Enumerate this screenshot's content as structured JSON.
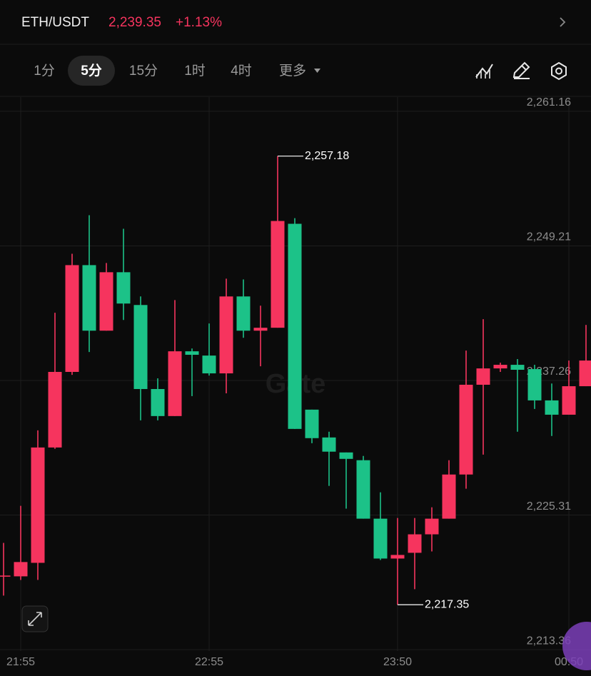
{
  "header": {
    "pair": "ETH/USDT",
    "price": "2,239.35",
    "change": "+1.13%"
  },
  "toolbar": {
    "intervals": [
      "1分",
      "5分",
      "15分",
      "1时",
      "4时",
      "更多"
    ],
    "selected": 1
  },
  "chart_data": {
    "type": "candlestick",
    "watermark": "Gate",
    "categories": [
      null,
      "21:55",
      null,
      null,
      null,
      null,
      null,
      null,
      null,
      null,
      null,
      null,
      "22:55",
      null,
      null,
      null,
      null,
      null,
      null,
      null,
      null,
      null,
      null,
      "23:50",
      null,
      null,
      null,
      null,
      null,
      null,
      null,
      null,
      null,
      "00:50",
      null
    ],
    "open": [
      2219.84,
      2219.87,
      2221.07,
      2231.31,
      2238.02,
      2247.5,
      2241.68,
      2246.87,
      2243.96,
      2236.5,
      2234.1,
      2239.85,
      2239.47,
      2237.89,
      2244.72,
      2241.68,
      2241.94,
      2251.17,
      2234.67,
      2232.2,
      2230.87,
      2230.18,
      2224.99,
      2221.45,
      2221.96,
      2223.6,
      2224.99,
      2228.91,
      2236.88,
      2238.33,
      2238.65,
      2238.27,
      2235.49,
      2234.22,
      2236.75
    ],
    "high": [
      2222.84,
      2226.13,
      2232.83,
      2243.27,
      2248.51,
      2251.93,
      2247.69,
      2250.73,
      2244.72,
      2237.45,
      2244.4,
      2240.1,
      2242.32,
      2246.3,
      2246.23,
      2243.9,
      2257.18,
      2251.67,
      2234.67,
      2232.71,
      2230.87,
      2230.56,
      2227.33,
      2225.05,
      2225.05,
      2226.0,
      2230.18,
      2239.91,
      2242.7,
      2238.84,
      2239.16,
      2238.65,
      2236.99,
      2239.03,
      2242.19
    ],
    "low": [
      2218.16,
      2219.55,
      2219.55,
      2231.19,
      2237.76,
      2239.79,
      2241.68,
      2242.63,
      2233.72,
      2233.72,
      2234.1,
      2235.87,
      2237.7,
      2236.12,
      2241.05,
      2238.52,
      2241.94,
      2232.96,
      2231.69,
      2227.9,
      2225.88,
      2224.99,
      2221.32,
      2217.35,
      2218.73,
      2222.08,
      2224.99,
      2227.65,
      2230.68,
      2238.02,
      2232.71,
      2234.73,
      2232.33,
      2234.22,
      2236.75
    ],
    "close": [
      2219.94,
      2221.14,
      2231.31,
      2238.02,
      2247.5,
      2241.68,
      2246.87,
      2244.09,
      2236.5,
      2234.1,
      2239.85,
      2239.54,
      2237.89,
      2244.72,
      2241.68,
      2241.94,
      2251.42,
      2232.96,
      2232.14,
      2230.94,
      2230.3,
      2224.99,
      2221.45,
      2221.77,
      2223.6,
      2224.99,
      2228.91,
      2236.88,
      2238.33,
      2238.65,
      2238.21,
      2235.49,
      2234.22,
      2236.75,
      2239.03
    ],
    "up_color": "#f6345e",
    "down_color": "#1cc288",
    "ylim": [
      2213.24,
      2262.42
    ],
    "yticks": [
      {
        "value": 2261.16,
        "label": "2,261.16"
      },
      {
        "value": 2249.21,
        "label": "2,249.21"
      },
      {
        "value": 2237.26,
        "label": "2,237.26"
      },
      {
        "value": 2225.31,
        "label": "2,225.31"
      },
      {
        "value": 2213.36,
        "label": "2,213.36"
      }
    ],
    "grid": true,
    "annotations": [
      "2,257.18",
      "2,217.35"
    ]
  }
}
